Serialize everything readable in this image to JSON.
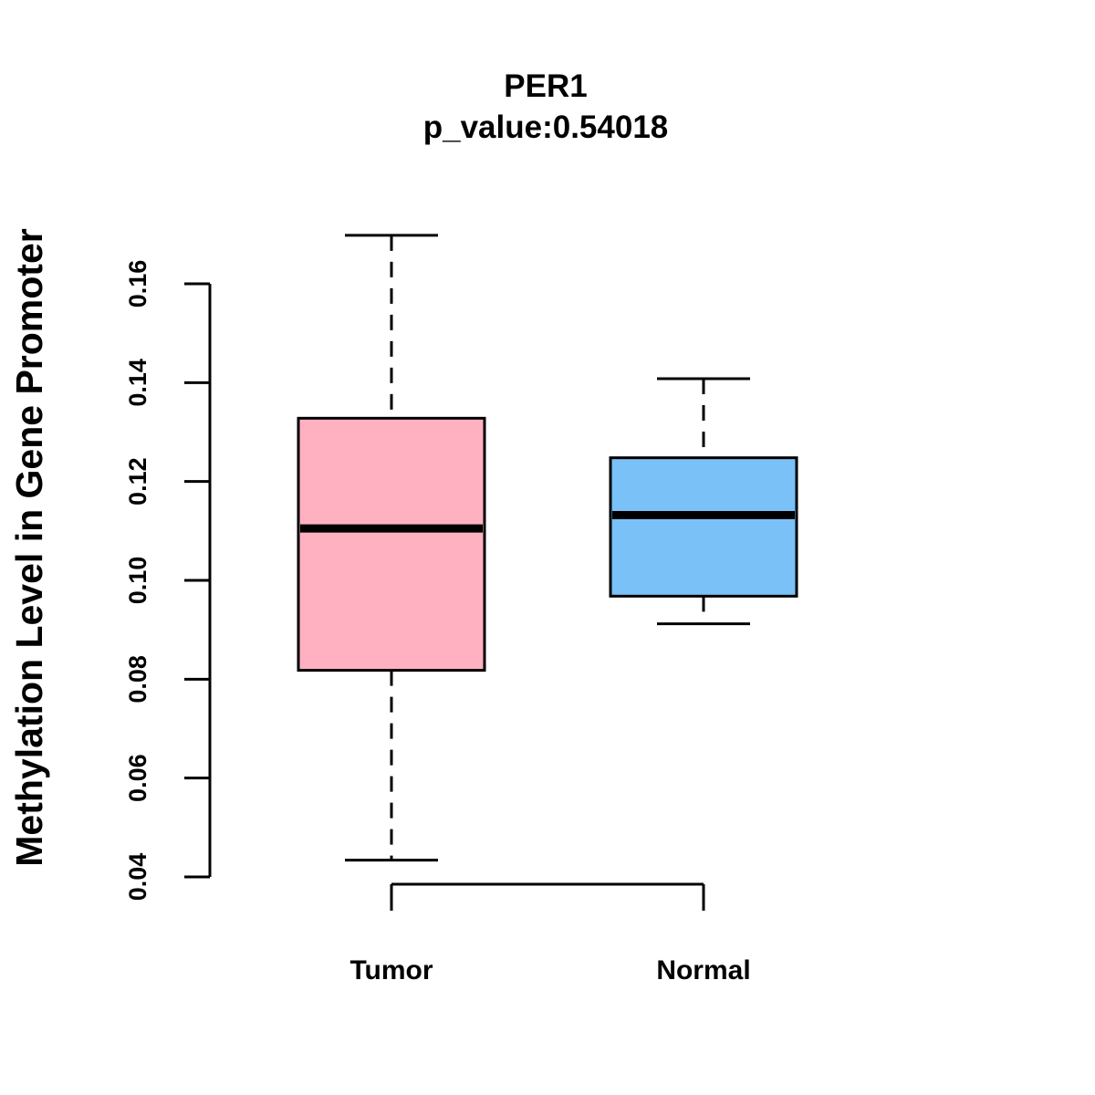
{
  "chart_data": {
    "type": "boxplot",
    "title": "PER1",
    "subtitle": "p_value:0.54018",
    "xlabel": "",
    "ylabel": "Methylation Level in Gene Promoter",
    "ylim": [
      0.04,
      0.16
    ],
    "yticks": [
      0.04,
      0.06,
      0.08,
      0.1,
      0.12,
      0.14,
      0.16
    ],
    "ytick_labels": [
      "0.04",
      "0.06",
      "0.08",
      "0.10",
      "0.12",
      "0.14",
      "0.16"
    ],
    "categories": [
      "Tumor",
      "Normal"
    ],
    "series": [
      {
        "name": "Tumor",
        "min": 0.0434,
        "q1": 0.0818,
        "median": 0.1105,
        "q3": 0.1328,
        "max": 0.1698,
        "color": "#FFB0C1"
      },
      {
        "name": "Normal",
        "min": 0.0912,
        "q1": 0.0968,
        "median": 0.1132,
        "q3": 0.1248,
        "max": 0.1408,
        "color": "#79C1F7"
      }
    ],
    "grid": false,
    "legend": "none"
  }
}
